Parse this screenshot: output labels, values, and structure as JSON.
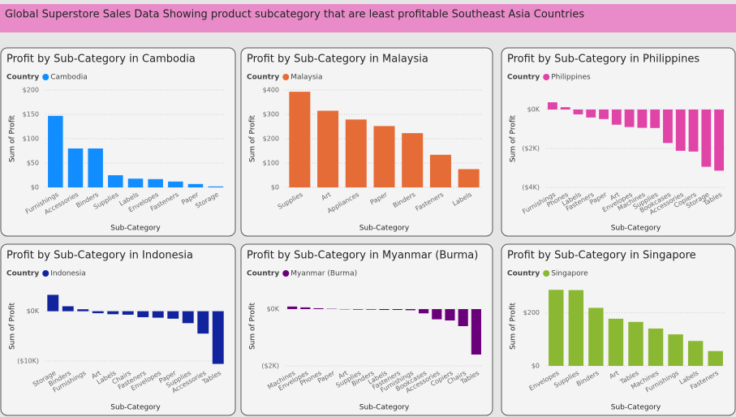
{
  "header": {
    "title": "Global Superstore Sales Data Showing product subcategory that are least profitable Southeast Asia Countries"
  },
  "chart_data": [
    {
      "type": "bar",
      "title": "Profit by Sub-Category in Cambodia",
      "legend_title": "Country",
      "xlabel": "Sub-Category",
      "ylabel": "Sum of Profit",
      "categories": [
        "Furnishings",
        "Accessories",
        "Binders",
        "Supplies",
        "Labels",
        "Envelopes",
        "Fasteners",
        "Paper",
        "Storage"
      ],
      "series": [
        {
          "name": "Cambodia",
          "color": "#118dff",
          "values": [
            147,
            80,
            80,
            25,
            18,
            17,
            12,
            7,
            2
          ]
        }
      ],
      "ylim": [
        0,
        200
      ],
      "yticks": [
        {
          "value": 0,
          "label": "$0"
        },
        {
          "value": 50,
          "label": "$50"
        },
        {
          "value": 100,
          "label": "$100"
        },
        {
          "value": 150,
          "label": "$150"
        },
        {
          "value": 200,
          "label": "$200"
        }
      ],
      "grid": true
    },
    {
      "type": "bar",
      "title": "Profit by Sub-Category in Malaysia",
      "legend_title": "Country",
      "xlabel": "Sub-Category",
      "ylabel": "Sum of Profit",
      "categories": [
        "Supplies",
        "Art",
        "Appliances",
        "Paper",
        "Binders",
        "Fasteners",
        "Labels"
      ],
      "series": [
        {
          "name": "Malaysia",
          "color": "#e66c37",
          "values": [
            393,
            315,
            279,
            252,
            223,
            134,
            75
          ]
        }
      ],
      "ylim": [
        0,
        400
      ],
      "yticks": [
        {
          "value": 0,
          "label": "$0"
        },
        {
          "value": 100,
          "label": "$100"
        },
        {
          "value": 200,
          "label": "$200"
        },
        {
          "value": 300,
          "label": "$300"
        },
        {
          "value": 400,
          "label": "$400"
        }
      ],
      "grid": true
    },
    {
      "type": "bar",
      "title": "Profit by Sub-Category in Philippines",
      "legend_title": "Country",
      "xlabel": "Sub-Category",
      "ylabel": "Sum of Profit",
      "categories": [
        "Furnishings",
        "Phones",
        "Labels",
        "Fasteners",
        "Paper",
        "Art",
        "Envelopes",
        "Machines",
        "Supplies",
        "Bookcases",
        "Accessories",
        "Copiers",
        "Storage",
        "Tables"
      ],
      "series": [
        {
          "name": "Philippines",
          "color": "#e044a7",
          "values": [
            370,
            120,
            -250,
            -410,
            -490,
            -780,
            -900,
            -940,
            -950,
            -1720,
            -2120,
            -2160,
            -2940,
            -3140
          ]
        }
      ],
      "ylim": [
        -4000,
        1000
      ],
      "yticks": [
        {
          "value": -4000,
          "label": "($4K)"
        },
        {
          "value": -2000,
          "label": "($2K)"
        },
        {
          "value": 0,
          "label": "$0K"
        }
      ],
      "grid": true
    },
    {
      "type": "bar",
      "title": "Profit by Sub-Category in Indonesia",
      "legend_title": "Country",
      "xlabel": "Sub-Category",
      "ylabel": "Sum of Profit",
      "categories": [
        "Storage",
        "Binders",
        "Furnishings",
        "Art",
        "Labels",
        "Chairs",
        "Fasteners",
        "Envelopes",
        "Paper",
        "Supplies",
        "Accessories",
        "Tables"
      ],
      "series": [
        {
          "name": "Indonesia",
          "color": "#12239e",
          "values": [
            3300,
            1000,
            400,
            -400,
            -600,
            -700,
            -1200,
            -1300,
            -1500,
            -2400,
            -4500,
            -10600
          ]
        }
      ],
      "ylim": [
        -11000,
        5000
      ],
      "yticks": [
        {
          "value": -10000,
          "label": "($10K)"
        },
        {
          "value": 0,
          "label": "$0K"
        }
      ],
      "grid": true
    },
    {
      "type": "bar",
      "title": "Profit by Sub-Category in Myanmar (Burma)",
      "legend_title": "Country",
      "xlabel": "Sub-Category",
      "ylabel": "Sum of Profit",
      "categories": [
        "Machines",
        "Envelopes",
        "Phones",
        "Paper",
        "Art",
        "Supplies",
        "Binders",
        "Labels",
        "Fasteners",
        "Furnishings",
        "Bookcases",
        "Accessories",
        "Copiers",
        "Chairs",
        "Tables"
      ],
      "series": [
        {
          "name": "Myanmar (Burma)",
          "color": "#6b007b",
          "values": [
            90,
            60,
            30,
            10,
            -10,
            -20,
            -20,
            -30,
            -30,
            -40,
            -150,
            -360,
            -400,
            -600,
            -1600
          ]
        }
      ],
      "ylim": [
        -2000,
        800
      ],
      "yticks": [
        {
          "value": -2000,
          "label": "($2K)"
        },
        {
          "value": 0,
          "label": "$0K"
        }
      ],
      "grid": true
    },
    {
      "type": "bar",
      "title": "Profit by Sub-Category in Singapore",
      "legend_title": "Country",
      "xlabel": "Sub-Category",
      "ylabel": "Sum of Profit",
      "categories": [
        "Envelopes",
        "Supplies",
        "Binders",
        "Art",
        "Tables",
        "Machines",
        "Furnishings",
        "Labels",
        "Fasteners"
      ],
      "series": [
        {
          "name": "Singapore",
          "color": "#8ab833",
          "values": [
            287,
            286,
            219,
            178,
            166,
            141,
            119,
            94,
            56
          ]
        }
      ],
      "ylim": [
        0,
        300
      ],
      "yticks": [
        {
          "value": 0,
          "label": "$0"
        },
        {
          "value": 200,
          "label": "$200"
        }
      ],
      "grid": true
    }
  ]
}
